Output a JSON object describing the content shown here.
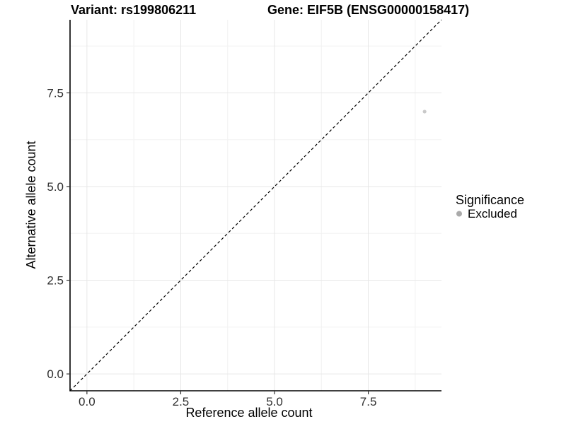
{
  "chart_data": {
    "type": "scatter",
    "title_left": "Variant: rs199806211",
    "title_right": "Gene: EIF5B (ENSG00000158417)",
    "xlabel": "Reference allele count",
    "ylabel": "Alternative allele count",
    "xlim": [
      -0.45,
      9.45
    ],
    "ylim": [
      -0.45,
      9.45
    ],
    "x_ticks": {
      "values": [
        0,
        2.5,
        5,
        7.5
      ],
      "labels": [
        "0.0",
        "2.5",
        "5.0",
        "7.5"
      ]
    },
    "y_ticks": {
      "values": [
        0,
        2.5,
        5,
        7.5
      ],
      "labels": [
        "0.0",
        "2.5",
        "5.0",
        "7.5"
      ]
    },
    "x_minor": [
      1.25,
      3.75,
      6.25,
      8.75
    ],
    "y_minor": [
      1.25,
      3.75,
      6.25,
      8.75
    ],
    "grid": true,
    "reference_line": {
      "type": "identity",
      "style": "dashed",
      "color": "#000000"
    },
    "series": [
      {
        "name": "Excluded",
        "color": "#c9c9c9",
        "points": [
          {
            "x": 9,
            "y": 7
          }
        ]
      }
    ],
    "legend": {
      "title": "Significance",
      "position": "right",
      "entries": [
        {
          "label": "Excluded",
          "color": "#aaaaaa"
        }
      ]
    },
    "colors": {
      "grid_major": "#e7e7e7",
      "grid_minor": "#f2f2f2",
      "axis_line": "#000000",
      "tick_mark": "#333333",
      "background": "#ffffff"
    }
  }
}
